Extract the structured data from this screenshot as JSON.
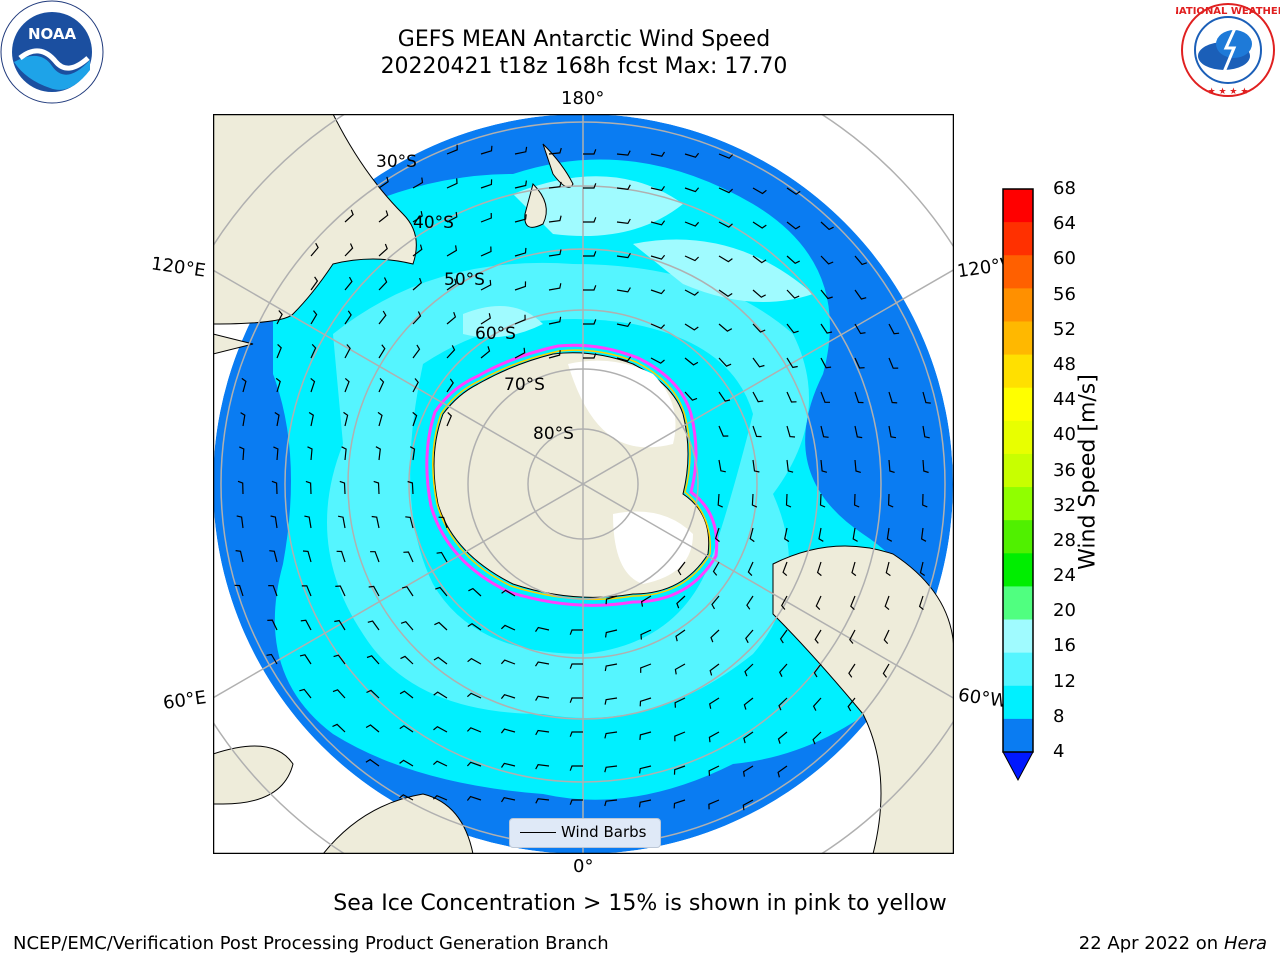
{
  "title": {
    "line1": "GEFS MEAN Antarctic Wind Speed",
    "line2": "20220421 t18z 168h fcst   Max: 17.70"
  },
  "logos": {
    "left": {
      "icon": "noaa-logo",
      "text": "NOAA"
    },
    "right": {
      "icon": "nws-logo",
      "text": "NATIONAL WEATHER SERVICE"
    }
  },
  "map": {
    "projection": "south-polar-stereographic",
    "longitude_labels": {
      "top": "180°",
      "bottom": "0°",
      "upper_left": "120°E",
      "upper_right": "120°W",
      "lower_left": "60°E",
      "lower_right": "60°W"
    },
    "latitude_labels": [
      "30°S",
      "40°S",
      "50°S",
      "60°S",
      "70°S",
      "80°S"
    ],
    "legend": {
      "label": "Wind Barbs"
    },
    "colors": {
      "land": "#eeecda",
      "ice_edge": "#ff40ff",
      "ice_edge_alt": "#ffd000",
      "ocean_4_8": "#0a7cf2",
      "ocean_8_12": "#00f0ff",
      "ocean_12_16": "#55f5ff",
      "ocean_16_20": "#a0fbff"
    }
  },
  "colorbar": {
    "label": "Wind Speed [m/s]",
    "ticks": [
      "68",
      "64",
      "60",
      "56",
      "52",
      "48",
      "44",
      "40",
      "36",
      "32",
      "28",
      "24",
      "20",
      "16",
      "12",
      "8",
      "4"
    ],
    "colors": [
      "#ff0000",
      "#ff3000",
      "#ff6000",
      "#ff9000",
      "#ffb800",
      "#ffe000",
      "#ffff00",
      "#e8ff00",
      "#c8ff00",
      "#90ff00",
      "#50f000",
      "#00ee00",
      "#50ff80",
      "#a0fbff",
      "#55f5ff",
      "#00f0ff",
      "#0a7cf2"
    ],
    "under_color": "#0018ff"
  },
  "caption": "Sea Ice Concentration > 15% is shown in pink to yellow",
  "footer": {
    "left": "NCEP/EMC/Verification Post Processing Product Generation Branch",
    "right_prefix": "22 Apr 2022 on ",
    "right_host": "Hera"
  }
}
